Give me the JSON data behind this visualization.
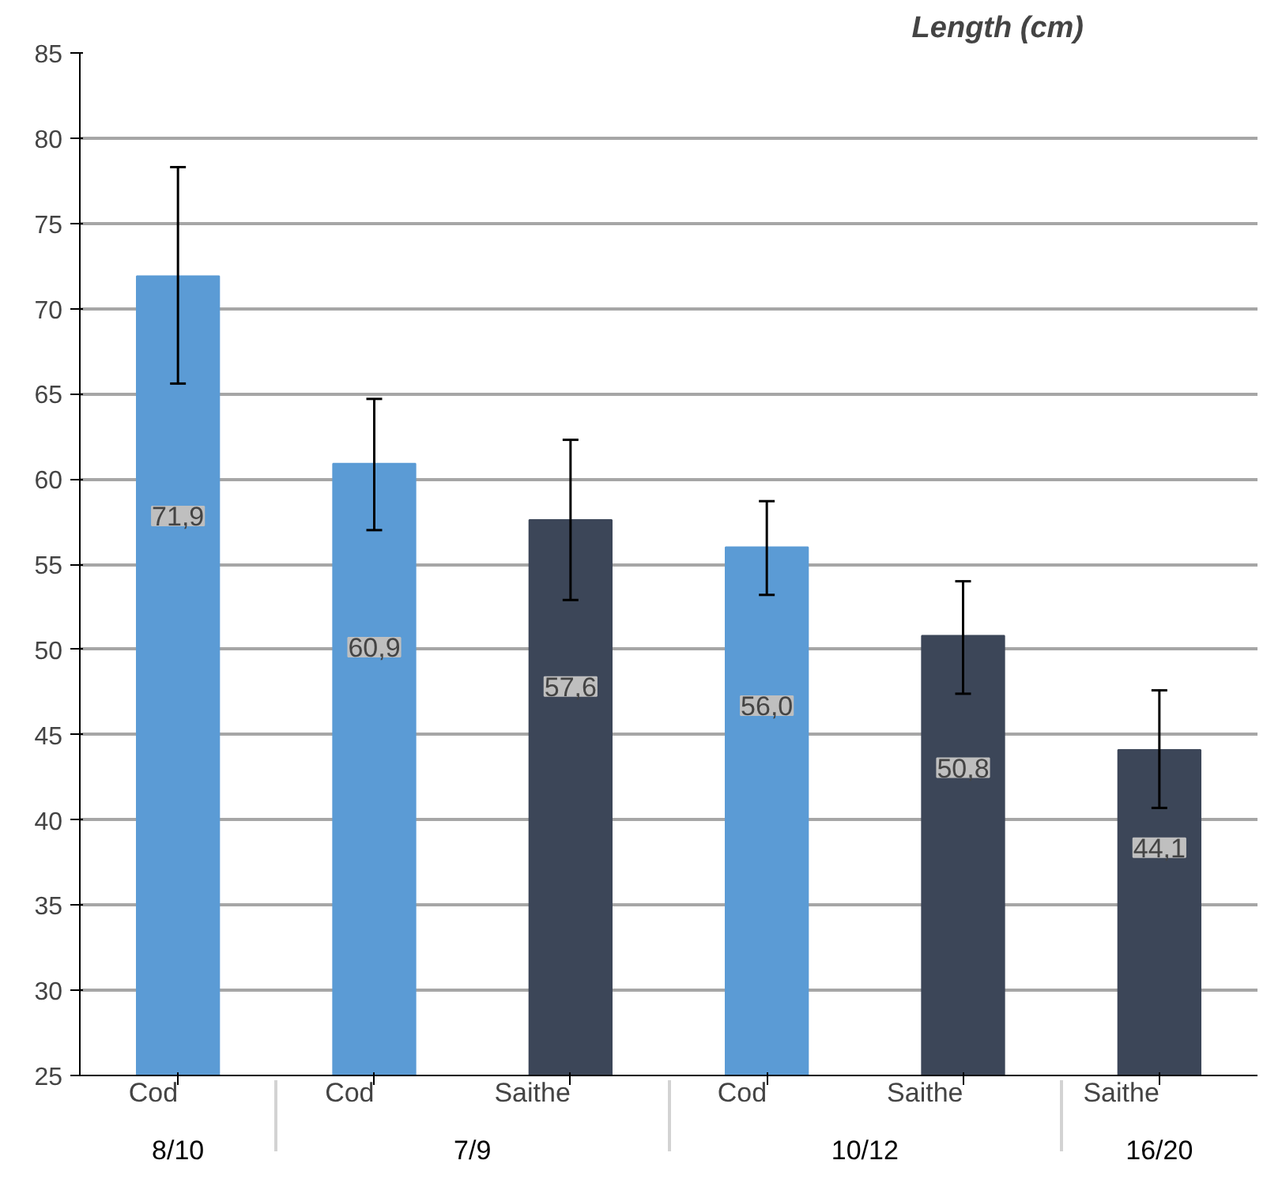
{
  "chart_data": {
    "type": "bar",
    "title": "Length (cm)",
    "categories": [
      [
        "8/10",
        "Cod"
      ],
      [
        "7/9",
        "Cod"
      ],
      [
        null,
        "Saithe"
      ],
      [
        "10/12",
        "Cod"
      ],
      [
        null,
        "Saithe"
      ],
      [
        "16/20",
        "Saithe"
      ]
    ],
    "values": [
      71.9,
      60.9,
      57.6,
      56.0,
      50.8,
      44.1
    ],
    "value_labels": [
      "71,9",
      "60,9",
      "57,6",
      "56,0",
      "50,8",
      "44,1"
    ],
    "colors": [
      "#5b9bd5",
      "#5b9bd5",
      "#3c4658",
      "#5b9bd5",
      "#3c4658",
      "#3c4658"
    ],
    "errors": [
      [
        65.6,
        78.3
      ],
      [
        57.0,
        64.7
      ],
      [
        52.9,
        62.3
      ],
      [
        53.2,
        58.7
      ],
      [
        47.4,
        54.0
      ],
      [
        40.7,
        47.6
      ]
    ],
    "ylim": [
      25,
      85
    ],
    "yticks": [
      25,
      30,
      35,
      40,
      45,
      50,
      55,
      60,
      65,
      70,
      75,
      80,
      85
    ],
    "grid": "y"
  }
}
